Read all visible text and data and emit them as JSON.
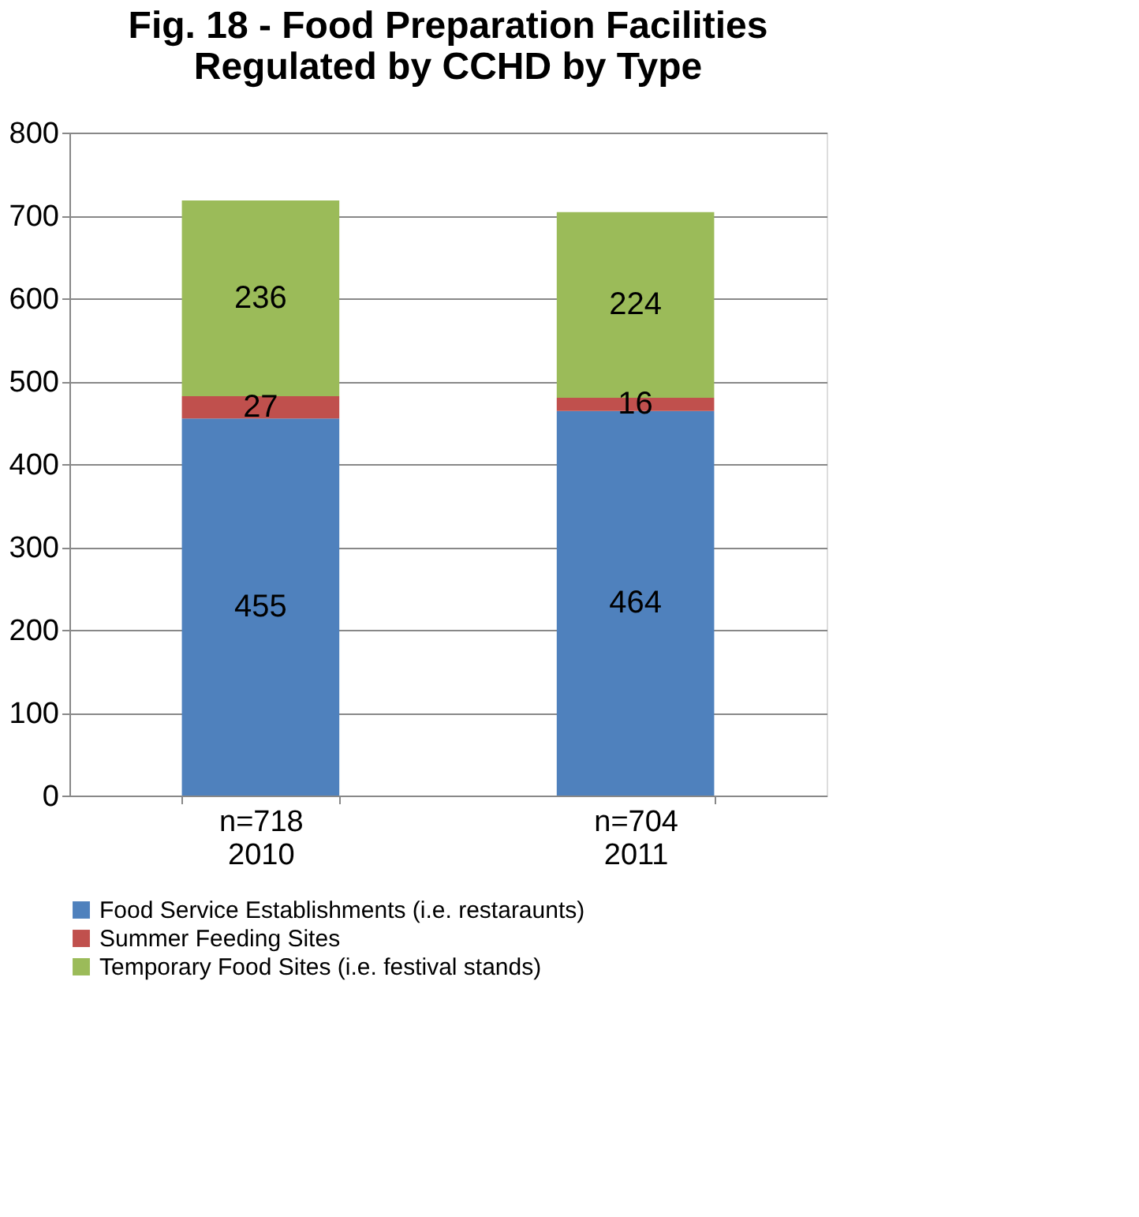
{
  "chart_data": {
    "type": "bar",
    "title": "Fig. 18 - Food Preparation Facilities\nRegulated by CCHD by Type",
    "categories": [
      "n=718\n2010",
      "n=704\n2011"
    ],
    "series": [
      {
        "name": "Food Service Establishments (i.e. restaraunts)",
        "color": "#4f81bd",
        "values": [
          455,
          464
        ]
      },
      {
        "name": "Summer Feeding Sites",
        "color": "#c0504d",
        "values": [
          27,
          16
        ]
      },
      {
        "name": "Temporary Food Sites (i.e. festival stands)",
        "color": "#9bbb59",
        "values": [
          236,
          224
        ]
      }
    ],
    "stacked": true,
    "data_labels": true,
    "ylim": [
      0,
      800
    ],
    "yticks": [
      0,
      100,
      200,
      300,
      400,
      500,
      600,
      700,
      800
    ],
    "grid": "y",
    "legend": "bottom"
  }
}
